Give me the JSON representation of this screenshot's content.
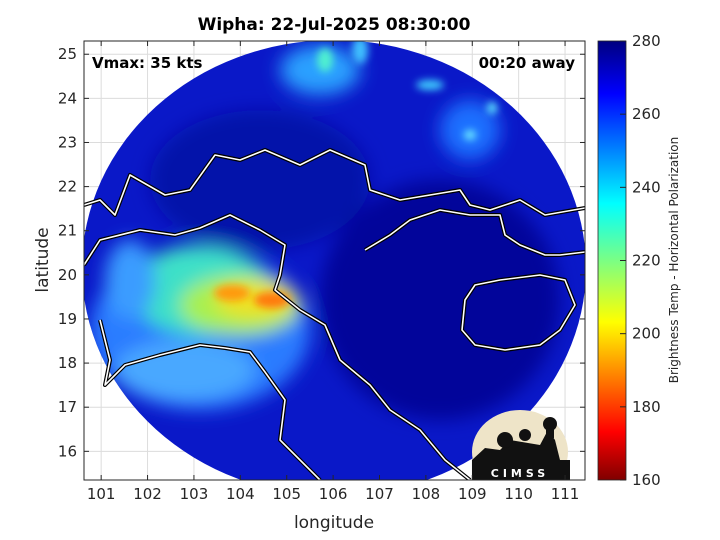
{
  "chart_data": {
    "type": "heatmap",
    "title": "Wipha: 22-Jul-2025 08:30:00",
    "xlabel": "longitude",
    "ylabel": "latitude",
    "xlim": [
      100.63,
      111.43
    ],
    "ylim": [
      15.35,
      25.3
    ],
    "xticks": [
      101,
      102,
      103,
      104,
      105,
      106,
      107,
      108,
      109,
      110,
      111
    ],
    "yticks": [
      16,
      17,
      18,
      19,
      20,
      21,
      22,
      23,
      24,
      25
    ],
    "grid": true,
    "annotations": {
      "vmax": "Vmax: 35 kts",
      "away": "00:20 away"
    },
    "colorbar": {
      "label": "Brightness Temp - Horizontal Polarization",
      "range": [
        160,
        280
      ],
      "ticks": [
        160,
        180,
        200,
        220,
        240,
        260,
        280
      ],
      "colormap": "jet"
    },
    "features": [
      {
        "desc_value": "cold region (~200-225)",
        "lon": 103.5,
        "lat": 19.3
      },
      {
        "desc_value": "coldest spots (~190)",
        "lon": 104.5,
        "lat": 19.4
      }
    ]
  },
  "logo": {
    "text": "CIMSS"
  },
  "colors": {
    "background": "#000080",
    "coast": "#ffffff"
  }
}
